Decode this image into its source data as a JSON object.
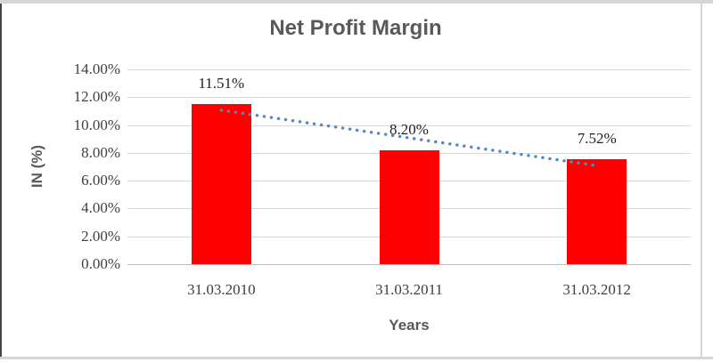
{
  "chart_data": {
    "type": "bar",
    "title": "Net Profit Margin",
    "categories": [
      "31.03.2010",
      "31.03.2011",
      "31.03.2012"
    ],
    "values": [
      11.51,
      8.2,
      7.52
    ],
    "value_labels": [
      "11.51%",
      "8.20%",
      "7.52%"
    ],
    "xlabel": "Years",
    "ylabel": "IN (%)",
    "ylim": [
      0,
      14
    ],
    "ytick_step": 2,
    "ytick_labels": [
      "0.00%",
      "2.00%",
      "4.00%",
      "6.00%",
      "8.00%",
      "10.00%",
      "12.00%",
      "14.00%"
    ],
    "grid": true,
    "legend": false,
    "bar_color": "#ff0000",
    "trendline": {
      "type": "linear",
      "style": "dotted",
      "color": "#4e8ac8"
    },
    "colors": {
      "title": "#595959",
      "axis_title": "#595959",
      "tick_label": "#404040",
      "data_label": "#1f1f1f",
      "gridline": "#d9d9d9",
      "axis_line": "#bfbfbf",
      "frame_gray": "#d6d6d6",
      "frame_dark": "#454545"
    }
  }
}
